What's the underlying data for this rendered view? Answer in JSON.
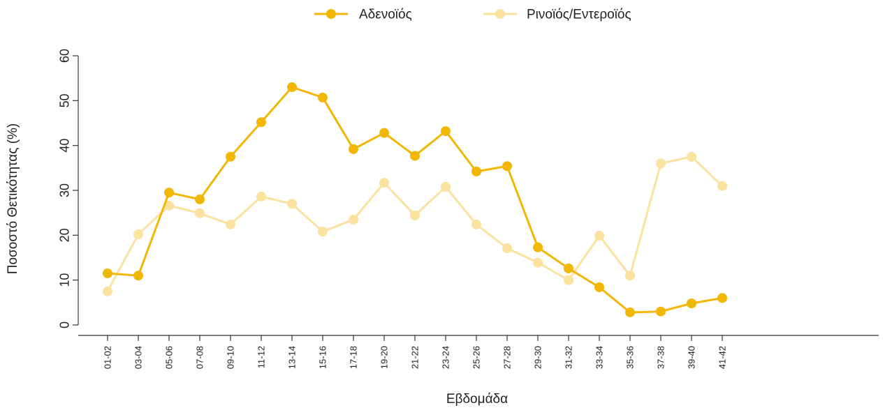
{
  "chart_data": {
    "type": "line",
    "title": "",
    "xlabel": "Εβδομάδα",
    "ylabel": "Ποσοστό Θετικότητας (%)",
    "ylim": [
      0,
      60
    ],
    "yticks": [
      0,
      10,
      20,
      30,
      40,
      50,
      60
    ],
    "categories": [
      "01-02",
      "03-04",
      "05-06",
      "07-08",
      "09-10",
      "11-12",
      "13-14",
      "15-16",
      "17-18",
      "19-20",
      "21-22",
      "23-24",
      "25-26",
      "27-28",
      "29-30",
      "31-32",
      "33-34",
      "35-36",
      "37-38",
      "39-40",
      "41-42"
    ],
    "legend_position": "top-center",
    "grid": false,
    "series": [
      {
        "name": "Αδενοϊός",
        "color": "#F2B705",
        "values": [
          11.5,
          11,
          29.5,
          28,
          37.5,
          45.2,
          53,
          50.7,
          39.2,
          42.8,
          37.7,
          43.2,
          34.2,
          35.4,
          17.3,
          12.6,
          8.4,
          2.8,
          3,
          4.8,
          6
        ]
      },
      {
        "name": "Ρινοϊός/Εντεροϊός",
        "color": "#FBE29F",
        "values": [
          7.5,
          20.2,
          26.6,
          24.9,
          22.4,
          28.6,
          27,
          20.8,
          23.5,
          31.7,
          24.4,
          30.8,
          22.4,
          17.1,
          13.9,
          10,
          19.9,
          11,
          36,
          37.5,
          31
        ]
      }
    ]
  }
}
